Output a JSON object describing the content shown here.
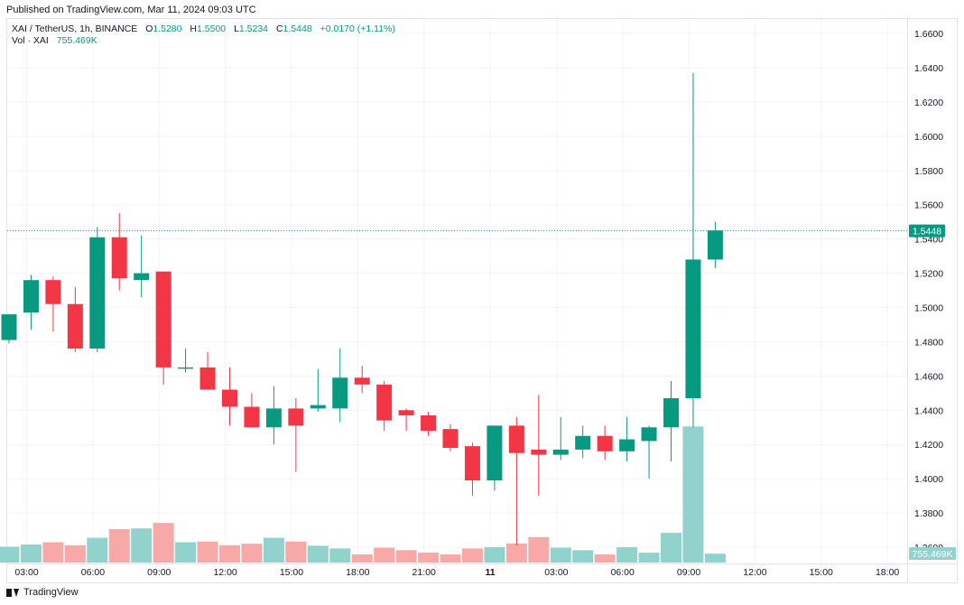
{
  "header": {
    "published": "Published on TradingView.com, Mar 11, 2024 09:03 UTC"
  },
  "legend": {
    "symbol": "XAI / TetherUS, 1h, BINANCE",
    "open_label": "O",
    "open": "1.5280",
    "high_label": "H",
    "high": "1.5500",
    "low_label": "L",
    "low": "1.5234",
    "close_label": "C",
    "close": "1.5448",
    "change": "+0.0170 (+1.11%)",
    "vol_label": "Vol · XAI",
    "vol_value": "755.469K"
  },
  "footer": {
    "brand": "TradingView"
  },
  "colors": {
    "up": "#089981",
    "down": "#f23645",
    "vol_up": "#92d2cc",
    "vol_down": "#f7a9a7"
  },
  "chart_data": {
    "type": "candlestick",
    "symbol": "XAI / TetherUS",
    "interval": "1h",
    "exchange": "BINANCE",
    "y_ticks": [
      "1.6600",
      "1.6400",
      "1.6200",
      "1.6000",
      "1.5800",
      "1.5600",
      "1.5400",
      "1.5200",
      "1.5000",
      "1.4800",
      "1.4600",
      "1.4400",
      "1.4200",
      "1.4000",
      "1.3800",
      "1.3600"
    ],
    "ylim": [
      1.3505,
      1.6685
    ],
    "x_ticks": [
      {
        "label": "03:00",
        "bar": 0.8
      },
      {
        "label": "06:00",
        "bar": 3.8
      },
      {
        "label": "09:00",
        "bar": 6.8
      },
      {
        "label": "12:00",
        "bar": 9.8
      },
      {
        "label": "15:00",
        "bar": 12.8
      },
      {
        "label": "18:00",
        "bar": 15.8
      },
      {
        "label": "21:00",
        "bar": 18.8
      },
      {
        "label": "11",
        "bar": 21.8,
        "bold": true
      },
      {
        "label": "03:00",
        "bar": 24.8
      },
      {
        "label": "06:00",
        "bar": 27.8
      },
      {
        "label": "09:00",
        "bar": 30.8
      },
      {
        "label": "12:00",
        "bar": 33.8
      },
      {
        "label": "15:00",
        "bar": 36.8
      },
      {
        "label": "18:00",
        "bar": 39.8
      }
    ],
    "last_price": "1.5448",
    "last_volume": "755.469K",
    "candles": [
      {
        "o": 1.481,
        "h": 1.496,
        "l": 1.479,
        "c": 1.496,
        "v": 0.64
      },
      {
        "o": 1.497,
        "h": 1.519,
        "l": 1.487,
        "c": 1.516,
        "v": 0.73
      },
      {
        "o": 1.516,
        "h": 1.518,
        "l": 1.486,
        "c": 1.502,
        "v": 0.82
      },
      {
        "o": 1.502,
        "h": 1.512,
        "l": 1.474,
        "c": 1.476,
        "v": 0.7
      },
      {
        "o": 1.476,
        "h": 1.547,
        "l": 1.474,
        "c": 1.541,
        "v": 1.0
      },
      {
        "o": 1.541,
        "h": 1.555,
        "l": 1.51,
        "c": 1.517,
        "v": 1.35
      },
      {
        "o": 1.516,
        "h": 1.542,
        "l": 1.506,
        "c": 1.52,
        "v": 1.38
      },
      {
        "o": 1.521,
        "h": 1.521,
        "l": 1.455,
        "c": 1.465,
        "v": 1.6
      },
      {
        "o": 1.465,
        "h": 1.476,
        "l": 1.462,
        "c": 1.465,
        "v": 0.82
      },
      {
        "o": 1.465,
        "h": 1.474,
        "l": 1.453,
        "c": 1.452,
        "v": 0.85
      },
      {
        "o": 1.452,
        "h": 1.465,
        "l": 1.431,
        "c": 1.442,
        "v": 0.7
      },
      {
        "o": 1.442,
        "h": 1.45,
        "l": 1.43,
        "c": 1.43,
        "v": 0.76
      },
      {
        "o": 1.43,
        "h": 1.454,
        "l": 1.42,
        "c": 1.441,
        "v": 1.0
      },
      {
        "o": 1.441,
        "h": 1.447,
        "l": 1.404,
        "c": 1.431,
        "v": 0.85
      },
      {
        "o": 1.441,
        "h": 1.464,
        "l": 1.439,
        "c": 1.443,
        "v": 0.68
      },
      {
        "o": 1.441,
        "h": 1.476,
        "l": 1.433,
        "c": 1.459,
        "v": 0.57
      },
      {
        "o": 1.459,
        "h": 1.466,
        "l": 1.45,
        "c": 1.455,
        "v": 0.33
      },
      {
        "o": 1.455,
        "h": 1.457,
        "l": 1.428,
        "c": 1.434,
        "v": 0.6
      },
      {
        "o": 1.44,
        "h": 1.441,
        "l": 1.428,
        "c": 1.437,
        "v": 0.5
      },
      {
        "o": 1.437,
        "h": 1.439,
        "l": 1.425,
        "c": 1.428,
        "v": 0.4
      },
      {
        "o": 1.429,
        "h": 1.432,
        "l": 1.416,
        "c": 1.418,
        "v": 0.33
      },
      {
        "o": 1.419,
        "h": 1.421,
        "l": 1.39,
        "c": 1.399,
        "v": 0.57
      },
      {
        "o": 1.399,
        "h": 1.431,
        "l": 1.393,
        "c": 1.431,
        "v": 0.62
      },
      {
        "o": 1.431,
        "h": 1.436,
        "l": 1.361,
        "c": 1.415,
        "v": 0.77
      },
      {
        "o": 1.417,
        "h": 1.449,
        "l": 1.39,
        "c": 1.414,
        "v": 1.03
      },
      {
        "o": 1.414,
        "h": 1.436,
        "l": 1.411,
        "c": 1.417,
        "v": 0.6
      },
      {
        "o": 1.417,
        "h": 1.431,
        "l": 1.412,
        "c": 1.425,
        "v": 0.5
      },
      {
        "o": 1.425,
        "h": 1.431,
        "l": 1.411,
        "c": 1.416,
        "v": 0.33
      },
      {
        "o": 1.416,
        "h": 1.436,
        "l": 1.41,
        "c": 1.423,
        "v": 0.62
      },
      {
        "o": 1.422,
        "h": 1.431,
        "l": 1.4,
        "c": 1.43,
        "v": 0.4
      },
      {
        "o": 1.43,
        "h": 1.457,
        "l": 1.41,
        "c": 1.447,
        "v": 1.2
      },
      {
        "o": 1.447,
        "h": 1.637,
        "l": 1.43,
        "c": 1.528,
        "v": 5.5
      },
      {
        "o": 1.528,
        "h": 1.55,
        "l": 1.523,
        "c": 1.545,
        "v": 0.36
      }
    ]
  }
}
